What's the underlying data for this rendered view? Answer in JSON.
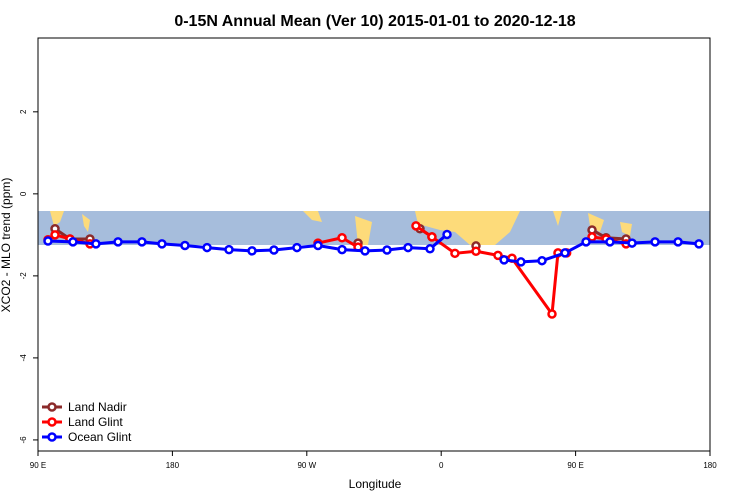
{
  "chart_data": {
    "type": "line",
    "title": "0-15N Annual Mean (Ver 10)   2015-01-01 to 2020-12-18",
    "x_label": "Longitude",
    "y_label": "XCO2 - MLO trend (ppm)",
    "xlim": [
      90,
      540
    ],
    "ylim": [
      -6.27,
      3.8
    ],
    "xticks": [
      {
        "value": 90,
        "label": "90 E"
      },
      180,
      {
        "value": 270,
        "label": "90 W"
      },
      {
        "value": 360,
        "label": "0"
      },
      {
        "value": 450,
        "label": "90 E"
      },
      {
        "value": 540,
        "label": "180"
      }
    ],
    "yticks": [
      -6,
      -4,
      -2,
      0,
      2
    ],
    "legend": "bottom-left",
    "series": [
      {
        "name": "Land Nadir",
        "color": "#8b2a2a",
        "x": [
          101.4,
          111.4,
          124.8,
          null,
          304.3,
          null,
          345.8,
          353.8,
          null,
          383.3,
          null,
          461.0,
          470.4,
          483.8
        ],
        "values": [
          -0.85,
          -1.1,
          -1.1,
          null,
          -1.2,
          null,
          -0.85,
          -1.05,
          null,
          -1.27,
          null,
          -0.88,
          -1.07,
          -1.1
        ]
      },
      {
        "name": "Land Glint",
        "color": "#ff0000",
        "x": [
          96.7,
          101.4,
          111.4,
          124.8,
          null,
          277.5,
          293.6,
          304.3,
          null,
          343.1,
          353.8,
          369.2,
          383.3,
          398.0,
          407.4,
          434.2,
          438.2,
          444.0,
          null,
          461.0,
          470.4,
          483.8
        ],
        "values": [
          -1.12,
          -1.0,
          -1.1,
          -1.22,
          null,
          -1.2,
          -1.07,
          -1.3,
          null,
          -0.78,
          -1.05,
          -1.45,
          -1.4,
          -1.5,
          -1.57,
          -2.93,
          -1.44,
          -1.44,
          null,
          -1.05,
          -1.1,
          -1.22
        ]
      },
      {
        "name": "Ocean Glint",
        "color": "#0000ff",
        "x": [
          96.7,
          113.4,
          128.8,
          143.6,
          159.6,
          173.0,
          188.4,
          203.2,
          217.9,
          233.3,
          248.0,
          263.4,
          277.5,
          293.6,
          309.0,
          323.7,
          337.8,
          352.5,
          363.9,
          null,
          402.1,
          413.4,
          427.5,
          442.9,
          457.0,
          473.0,
          487.8,
          503.2,
          518.6,
          532.6
        ],
        "values": [
          -1.15,
          -1.17,
          -1.22,
          -1.17,
          -1.17,
          -1.22,
          -1.26,
          -1.31,
          -1.36,
          -1.39,
          -1.37,
          -1.31,
          -1.26,
          -1.36,
          -1.39,
          -1.37,
          -1.31,
          -1.34,
          -0.99,
          null,
          -1.61,
          -1.66,
          -1.63,
          -1.44,
          -1.17,
          -1.17,
          -1.2,
          -1.17,
          -1.17,
          -1.22
        ]
      }
    ]
  }
}
